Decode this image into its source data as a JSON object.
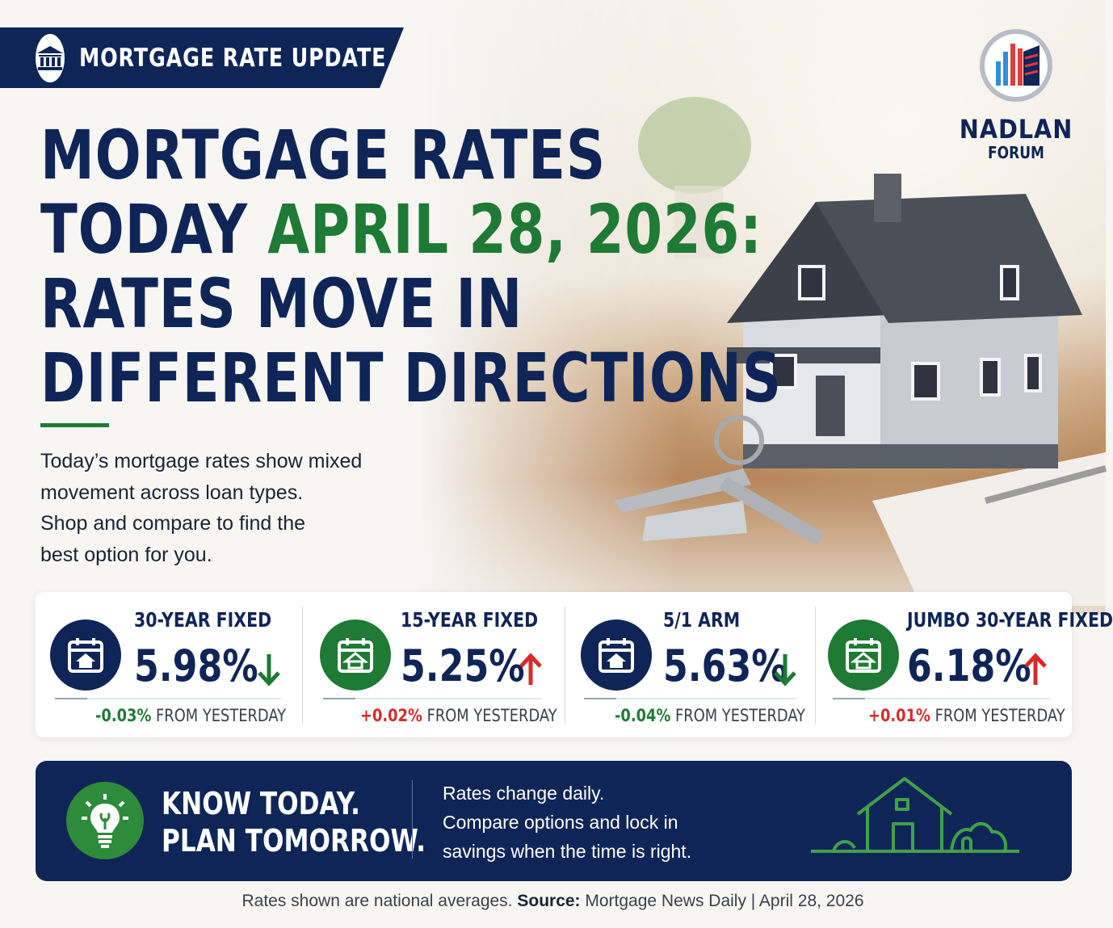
{
  "badge": {
    "label": "MORTGAGE RATE UPDATE",
    "icon": "bank-icon"
  },
  "logo": {
    "name": "NADLAN",
    "sub": "FORUM",
    "icon": "building-chart-icon"
  },
  "headline": {
    "line1": "MORTGAGE RATES",
    "line2_prefix": "TODAY ",
    "line2_date": "APRIL 28, 2026:",
    "line3": "RATES MOVE IN",
    "line4": "DIFFERENT DIRECTIONS",
    "accent_color": "#1e7a34"
  },
  "intro": {
    "line1": "Today’s mortgage rates show mixed",
    "line2": "movement across loan types.",
    "line3": "Shop and compare to find the",
    "line4": "best option for you."
  },
  "rates": [
    {
      "title": "30-YEAR FIXED",
      "value": "5.98%",
      "direction": "down",
      "change": "-0.03%",
      "suffix": "FROM YESTERDAY",
      "icon_color": "navy",
      "icon": "calendar-house-icon"
    },
    {
      "title": "15-YEAR FIXED",
      "value": "5.25%",
      "direction": "up",
      "change": "+0.02%",
      "suffix": "FROM YESTERDAY",
      "icon_color": "green",
      "icon": "calendar-house-icon"
    },
    {
      "title": "5/1 ARM",
      "value": "5.63%",
      "direction": "down",
      "change": "-0.04%",
      "suffix": "FROM YESTERDAY",
      "icon_color": "navy",
      "icon": "calendar-house-icon"
    },
    {
      "title": "JUMBO 30-YEAR FIXED",
      "value": "6.18%",
      "direction": "up",
      "change": "+0.01%",
      "suffix": "FROM YESTERDAY",
      "icon_color": "green",
      "icon": "calendar-house-icon"
    }
  ],
  "banner": {
    "slogan1": "KNOW TODAY.",
    "slogan2": "PLAN TOMORROW.",
    "text1": "Rates change daily.",
    "text2": "Compare options and lock in",
    "text3": "savings when the time is right.",
    "icon": "lightbulb-icon"
  },
  "footer": {
    "prefix": "Rates shown are national averages. ",
    "source_label": "Source:",
    "source_text": " Mortgage News Daily | April 28, 2026"
  },
  "colors": {
    "navy": "#0f2557",
    "green": "#1e7a34",
    "red": "#d62b2b"
  }
}
